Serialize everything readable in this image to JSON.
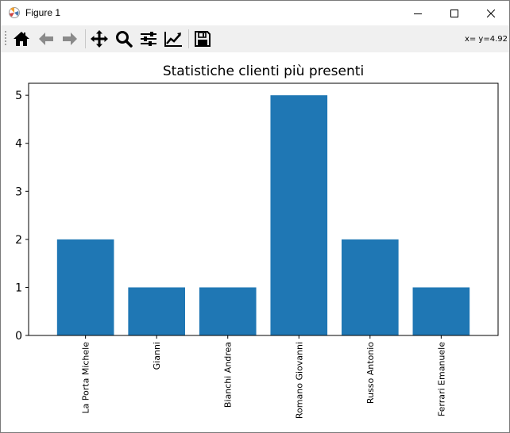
{
  "window": {
    "title": "Figure 1",
    "controls": {
      "minimize": "minimize",
      "maximize": "maximize",
      "close": "close"
    }
  },
  "toolbar": {
    "buttons": [
      {
        "name": "home",
        "icon": "home-icon"
      },
      {
        "name": "back",
        "icon": "arrow-left-icon"
      },
      {
        "name": "forward",
        "icon": "arrow-right-icon"
      },
      {
        "name": "pan",
        "icon": "move-icon"
      },
      {
        "name": "zoom",
        "icon": "magnifier-icon"
      },
      {
        "name": "subplots",
        "icon": "sliders-icon"
      },
      {
        "name": "axes",
        "icon": "line-chart-icon"
      },
      {
        "name": "save",
        "icon": "floppy-disk-icon"
      }
    ],
    "coords_text": "x= y=4.92"
  },
  "chart_data": {
    "type": "bar",
    "title": "Statistiche clienti più presenti",
    "categories": [
      "La Porta Michele",
      "Gianni",
      "Bianchi Andrea",
      "Romano Giovanni",
      "Russo Antonio",
      "Ferrari Emanuele"
    ],
    "values": [
      2,
      1,
      1,
      5,
      2,
      1
    ],
    "yticks": [
      "0",
      "1",
      "2",
      "3",
      "4",
      "5"
    ],
    "ylim": [
      0,
      5.25
    ],
    "xlabel": "",
    "ylabel": "",
    "bar_color": "#1f77b4",
    "xtick_rotation": "vertical",
    "grid": false
  }
}
